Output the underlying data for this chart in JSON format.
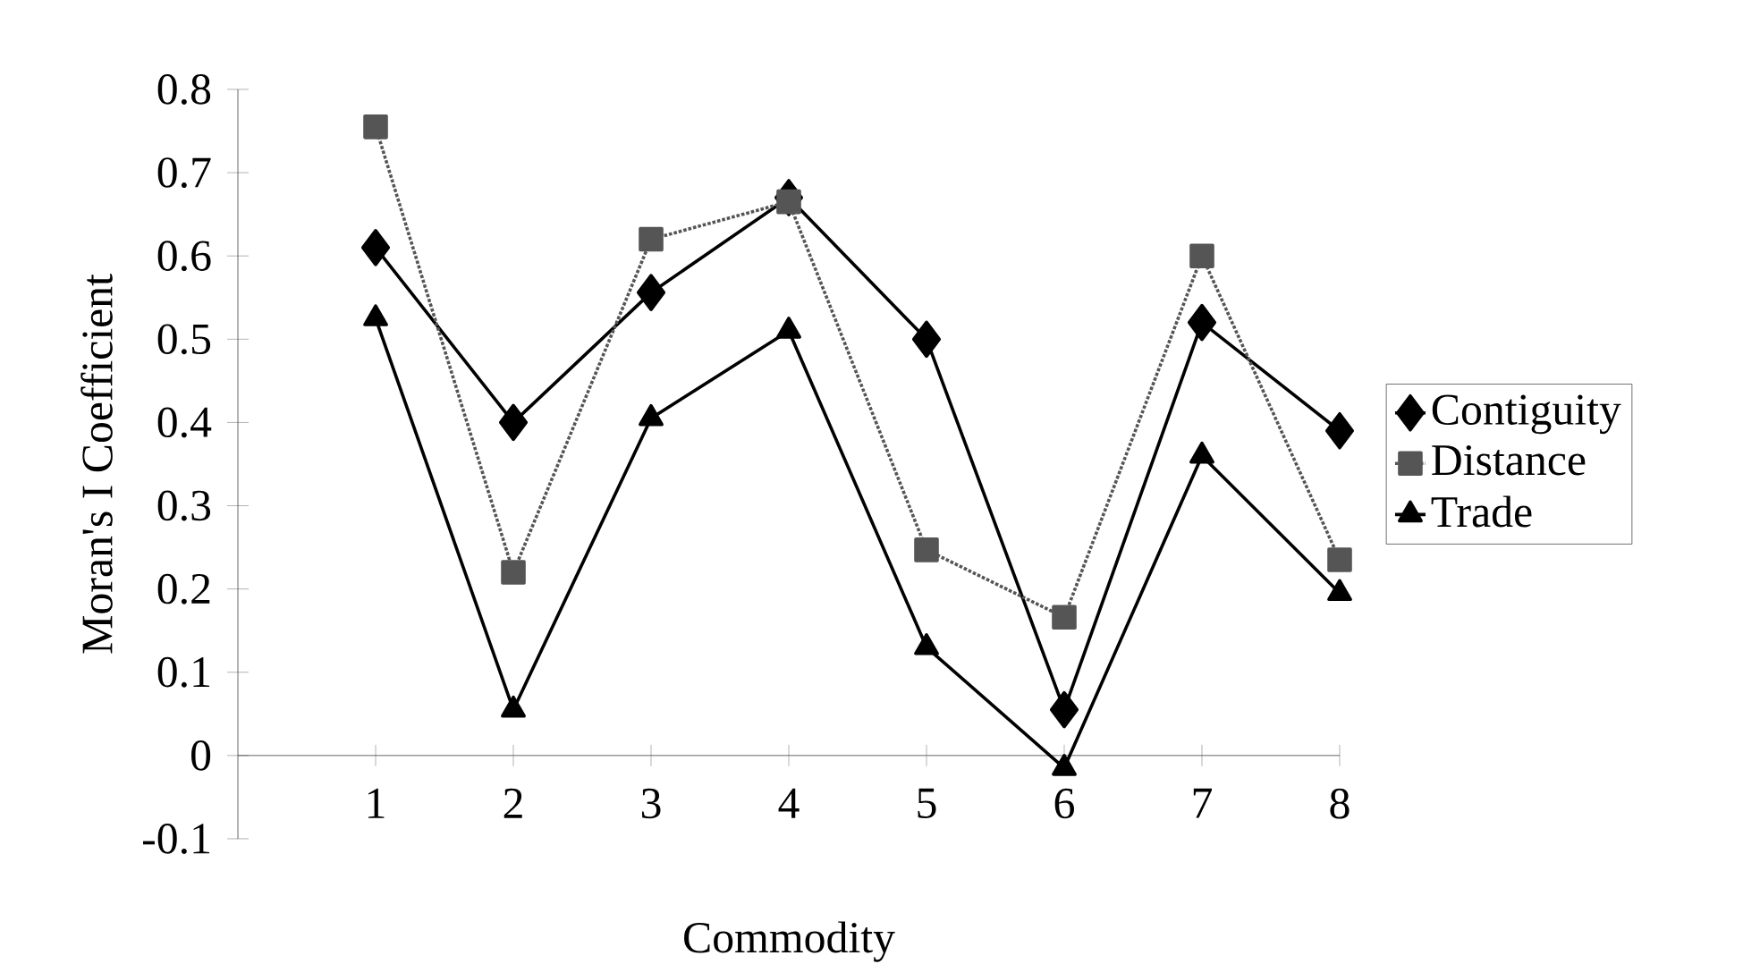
{
  "chart_data": {
    "type": "line",
    "xlabel": "Commodity",
    "ylabel": "Moran's I Coefficient",
    "categories": [
      "1",
      "2",
      "3",
      "4",
      "5",
      "6",
      "7",
      "8"
    ],
    "ylim": [
      -0.1,
      0.8
    ],
    "yticks": [
      -0.1,
      0,
      0.1,
      0.2,
      0.3,
      0.4,
      0.5,
      0.6,
      0.7,
      0.8
    ],
    "legend": "right",
    "grid": false,
    "series": [
      {
        "name": "Contiguity",
        "color": "#000000",
        "marker": "diamond",
        "line_style": "solid",
        "values": [
          0.61,
          0.4,
          0.556,
          0.67,
          0.5,
          0.055,
          0.52,
          0.39
        ]
      },
      {
        "name": "Distance",
        "color": "#555555",
        "marker": "square",
        "line_style": "dotted",
        "values": [
          0.755,
          0.22,
          0.62,
          0.665,
          0.247,
          0.166,
          0.6,
          0.235
        ]
      },
      {
        "name": "Trade",
        "color": "#000000",
        "marker": "triangle",
        "line_style": "solid",
        "values": [
          0.525,
          0.055,
          0.405,
          0.51,
          0.13,
          -0.015,
          0.36,
          0.195
        ]
      }
    ]
  }
}
